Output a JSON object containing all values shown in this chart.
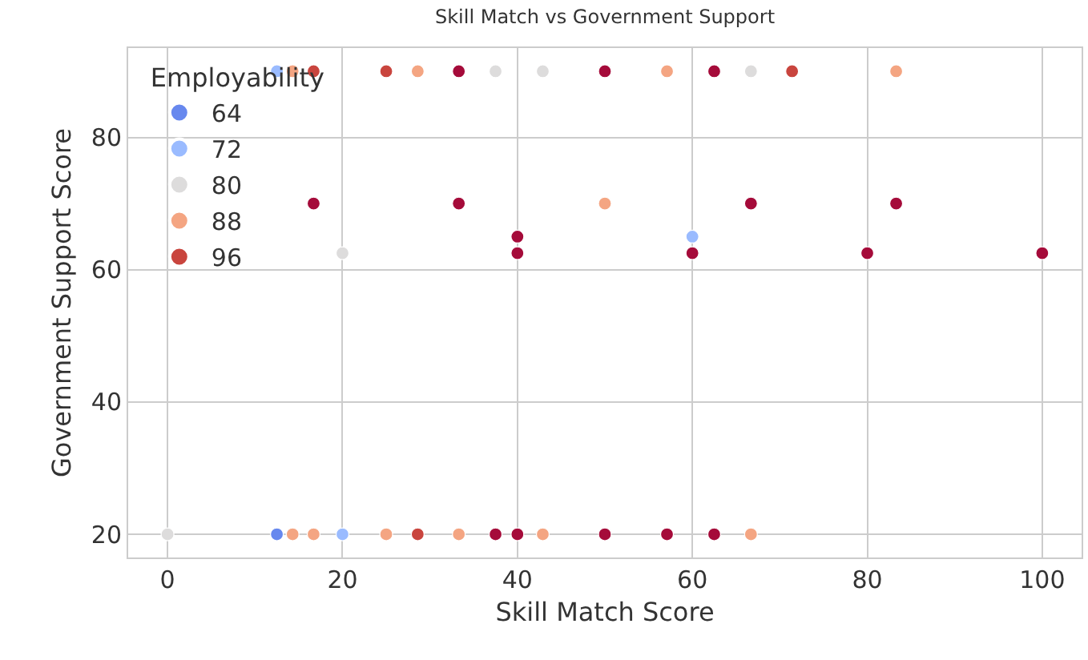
{
  "chart_data": {
    "type": "scatter",
    "title": "Skill Match vs Government Support",
    "xlabel": "Skill Match Score",
    "ylabel": "Government Support Score",
    "legend_title": "Employability",
    "xlim": [
      -4.5,
      104.5
    ],
    "xticks": [
      0,
      20,
      40,
      60,
      80,
      100
    ],
    "ylim": [
      16.5,
      93.5
    ],
    "yticks": [
      20,
      40,
      60,
      80
    ],
    "grid": true,
    "legend": "top left",
    "marker": "circle",
    "series": [
      {
        "name": "64",
        "color": "#6788ee",
        "x": [
          12.5
        ],
        "values": [
          20
        ]
      },
      {
        "name": "72",
        "color": "#9abbff",
        "x": [
          12.5,
          20,
          60
        ],
        "values": [
          90,
          20,
          65
        ]
      },
      {
        "name": "80",
        "color": "#dddcdc",
        "x": [
          37.5,
          42.9,
          66.7,
          0,
          20
        ],
        "values": [
          90,
          90,
          90,
          20,
          62.5
        ]
      },
      {
        "name": "88",
        "color": "#f4a582",
        "x": [
          14.3,
          28.6,
          57.1,
          83.3,
          50,
          14.3,
          16.7,
          25,
          33.3,
          42.9,
          66.7
        ],
        "values": [
          90,
          90,
          90,
          90,
          70,
          20,
          20,
          20,
          20,
          20,
          20
        ]
      },
      {
        "name": "96",
        "color": "#c9453e",
        "x": [
          16.7,
          25,
          71.4,
          28.6
        ],
        "values": [
          90,
          90,
          90,
          20
        ]
      },
      {
        "color": "#a50b3a",
        "x": [
          33.3,
          50,
          62.5,
          16.7,
          33.3,
          66.7,
          83.3,
          40,
          40,
          60,
          80,
          100,
          37.5,
          40,
          50,
          57.1,
          62.5
        ],
        "values": [
          90,
          90,
          90,
          70,
          70,
          70,
          70,
          65,
          62.5,
          62.5,
          62.5,
          62.5,
          20,
          20,
          20,
          20,
          20
        ]
      }
    ]
  }
}
